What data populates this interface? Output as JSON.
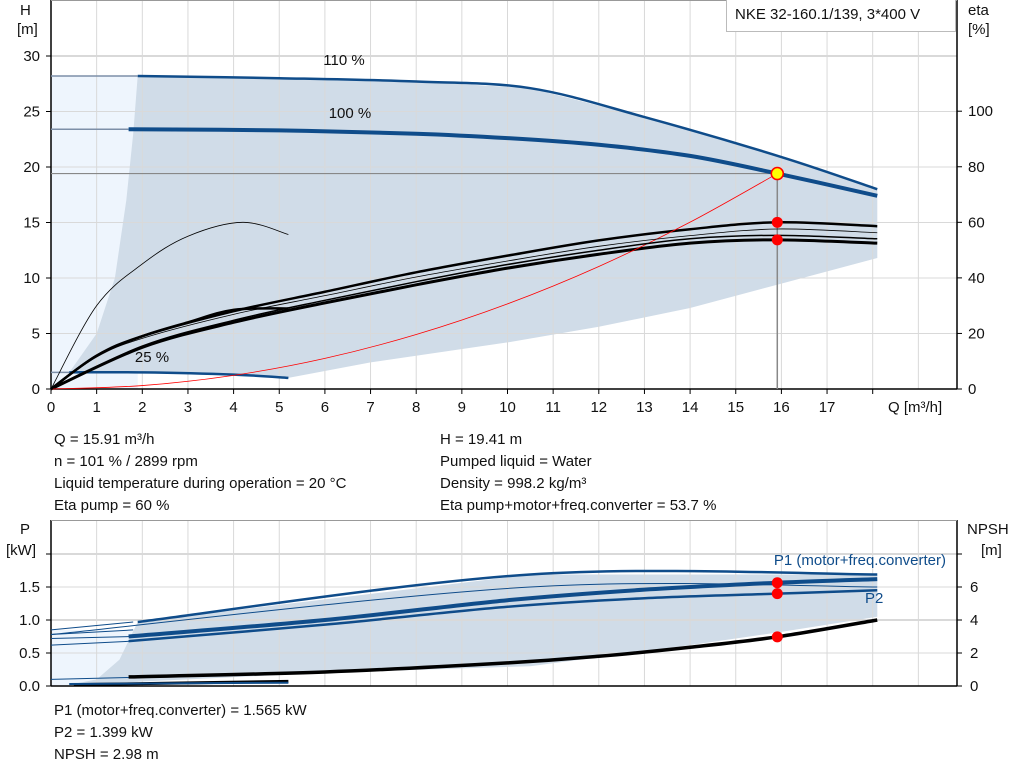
{
  "title": "NKE 32-160.1/139, 3*400 V",
  "colors": {
    "curve": "#0f4c8a",
    "shade": "#d0dce8",
    "light": "#eef5fd",
    "grid": "#d9d9d9",
    "marker": "#ff0000",
    "duty": "#ffff00"
  },
  "info_top": {
    "left": [
      "Q = 15.91 m³/h",
      "n = 101 % / 2899 rpm",
      "Liquid temperature during operation = 20 °C",
      "Eta pump = 60 %"
    ],
    "right": [
      "H = 19.41 m",
      "Pumped liquid = Water",
      "Density = 998.2 kg/m³",
      "Eta pump+motor+freq.converter = 53.7 %"
    ]
  },
  "info_bottom": [
    "P1 (motor+freq.converter) = 1.565 kW",
    "P2 = 1.399 kW",
    "NPSH = 2.98 m"
  ],
  "chart_data": [
    {
      "type": "line",
      "ylabel_top": "H",
      "ylabel_unit": "[m]",
      "y2label_top": "eta",
      "y2label_unit": "[%]",
      "xlabel": "Q [m³/h]",
      "xlim": [
        0,
        19.8
      ],
      "ylim": [
        0,
        35
      ],
      "y2lim": [
        0,
        140
      ],
      "grid": true,
      "xticks": [
        "0",
        "1",
        "2",
        "3",
        "4",
        "5",
        "6",
        "7",
        "8",
        "9",
        "10",
        "11",
        "12",
        "13",
        "14",
        "15",
        "16",
        "17"
      ],
      "yticks": [
        "0",
        "5",
        "10",
        "15",
        "20",
        "25",
        "30"
      ],
      "y2ticks": [
        "0",
        "20",
        "40",
        "60",
        "80",
        "100"
      ],
      "annotations": [
        "110 %",
        "100 %",
        "25 %"
      ],
      "series": [
        {
          "name": "110 %",
          "axis": "H",
          "points": [
            [
              1.9,
              28.2
            ],
            [
              5,
              28.0
            ],
            [
              8,
              27.7
            ],
            [
              10.5,
              27.1
            ],
            [
              13,
              24.5
            ],
            [
              16,
              20.9
            ],
            [
              18.1,
              18.0
            ]
          ]
        },
        {
          "name": "100 %",
          "axis": "H",
          "points": [
            [
              1.7,
              23.4
            ],
            [
              5,
              23.3
            ],
            [
              8,
              23.0
            ],
            [
              10,
              22.6
            ],
            [
              12,
              22.0
            ],
            [
              14,
              21.0
            ],
            [
              15.91,
              19.41
            ],
            [
              18.1,
              17.4
            ]
          ]
        },
        {
          "name": "25 %",
          "axis": "H",
          "points": [
            [
              0.4,
              1.5
            ],
            [
              2,
              1.5
            ],
            [
              4,
              1.3
            ],
            [
              5.2,
              1.0
            ]
          ]
        },
        {
          "axis": "eta",
          "kind": "eta-pump",
          "points": [
            [
              0,
              0
            ],
            [
              1,
              12
            ],
            [
              2,
              19
            ],
            [
              4,
              28
            ],
            [
              6,
              35
            ],
            [
              8,
              42
            ],
            [
              10,
              48
            ],
            [
              12,
              53.5
            ],
            [
              14,
              57.5
            ],
            [
              15.91,
              60
            ],
            [
              18.1,
              58.6
            ]
          ]
        },
        {
          "axis": "eta",
          "kind": "eta-total",
          "points": [
            [
              0,
              0
            ],
            [
              2,
              15
            ],
            [
              4,
              24
            ],
            [
              6,
              31
            ],
            [
              8,
              37.5
            ],
            [
              10,
              43.5
            ],
            [
              12,
              48.5
            ],
            [
              14,
              52.5
            ],
            [
              15.91,
              53.7
            ],
            [
              18.1,
              52.5
            ]
          ]
        },
        {
          "axis": "eta",
          "kind": "eta-pump-25",
          "points": [
            [
              0,
              0
            ],
            [
              1,
              30
            ],
            [
              2,
              45
            ],
            [
              3,
              55
            ],
            [
              4.2,
              60
            ],
            [
              5.2,
              55.6
            ]
          ]
        },
        {
          "axis": "eta",
          "kind": "eta-total-25",
          "points": [
            [
              0,
              0
            ],
            [
              1,
              12
            ],
            [
              2,
              19
            ],
            [
              3,
              24
            ],
            [
              4,
              28.5
            ],
            [
              5.2,
              29
            ]
          ]
        },
        {
          "axis": "H",
          "kind": "system-curve",
          "points": [
            [
              0,
              0
            ],
            [
              2,
              0.31
            ],
            [
              4,
              1.23
            ],
            [
              6,
              2.76
            ],
            [
              8,
              4.91
            ],
            [
              10,
              7.67
            ],
            [
              12,
              11.04
            ],
            [
              14,
              15.03
            ],
            [
              15.91,
              19.41
            ]
          ]
        }
      ],
      "duty_point": {
        "Q": 15.91,
        "H": 19.41,
        "eta_pump": 60,
        "eta_total": 53.7
      }
    },
    {
      "type": "line",
      "ylabel_top": "P",
      "ylabel_unit": "[kW]",
      "y2label_top": "NPSH",
      "y2label_unit": "[m]",
      "xlim": [
        0,
        19.8
      ],
      "ylim": [
        0,
        2.5
      ],
      "y2lim": [
        0,
        10
      ],
      "grid": true,
      "yticks": [
        "0.0",
        "0.5",
        "1.0",
        "1.5"
      ],
      "y2ticks": [
        "0",
        "2",
        "4",
        "6"
      ],
      "legend": [
        "P1 (motor+freq.converter)",
        "P2"
      ],
      "series": [
        {
          "name": "P1 (motor+freq.converter)",
          "axis": "P",
          "kind": "p1-110",
          "points": [
            [
              1.9,
              0.97
            ],
            [
              10.5,
              1.69
            ],
            [
              18.1,
              1.69
            ]
          ]
        },
        {
          "axis": "P",
          "kind": "p2-110",
          "points": [
            [
              0,
              0.78
            ],
            [
              10.5,
              1.5
            ],
            [
              18.1,
              1.5
            ]
          ]
        },
        {
          "name": "P1 (motor+freq.converter)",
          "axis": "P",
          "kind": "p1",
          "points": [
            [
              1.7,
              0.75
            ],
            [
              6,
              1.0
            ],
            [
              10,
              1.3
            ],
            [
              13,
              1.46
            ],
            [
              15.91,
              1.565
            ],
            [
              18.1,
              1.62
            ]
          ]
        },
        {
          "name": "P2",
          "axis": "P",
          "kind": "p2",
          "points": [
            [
              1.7,
              0.68
            ],
            [
              6,
              0.93
            ],
            [
              10,
              1.2
            ],
            [
              13,
              1.33
            ],
            [
              15.91,
              1.399
            ],
            [
              18.1,
              1.45
            ]
          ]
        },
        {
          "axis": "NPSH",
          "kind": "npsh",
          "points": [
            [
              1.7,
              0.55
            ],
            [
              6,
              0.85
            ],
            [
              10,
              1.4
            ],
            [
              12,
              1.8
            ],
            [
              14,
              2.35
            ],
            [
              15.91,
              2.98
            ],
            [
              18.1,
              4.0
            ]
          ]
        },
        {
          "axis": "P",
          "kind": "p-25",
          "points": [
            [
              0.5,
              0.02
            ],
            [
              5.2,
              0.07
            ]
          ]
        }
      ],
      "duty_point": {
        "P1": 1.565,
        "P2": 1.399,
        "NPSH": 2.98
      }
    }
  ]
}
